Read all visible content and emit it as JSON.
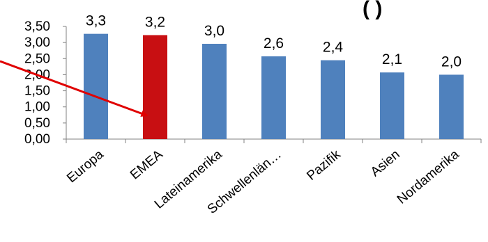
{
  "chart_data": {
    "type": "bar",
    "title_fragment": "(   )",
    "categories": [
      "Europa",
      "EMEA",
      "Lateinamerika",
      "Schwellenlän…",
      "Pazifik",
      "Asien",
      "Nordamerika"
    ],
    "values": [
      3.27,
      3.23,
      2.96,
      2.57,
      2.45,
      2.07,
      2.0
    ],
    "data_labels": [
      "3,3",
      "3,2",
      "3,0",
      "2,6",
      "2,4",
      "2,1",
      "2,0"
    ],
    "y_ticks": [
      "0,00",
      "0,50",
      "1,00",
      "1,50",
      "2,00",
      "2,50",
      "3,00",
      "3,50"
    ],
    "ylim": [
      0,
      3.5
    ],
    "grid": false,
    "legend": "none",
    "highlight_category": "EMEA",
    "arrow_target": "EMEA"
  },
  "colors": {
    "bar": "#4f81bd",
    "highlight_bar": "#c80f12",
    "arrow": "#e00000",
    "axis": "#808080"
  }
}
